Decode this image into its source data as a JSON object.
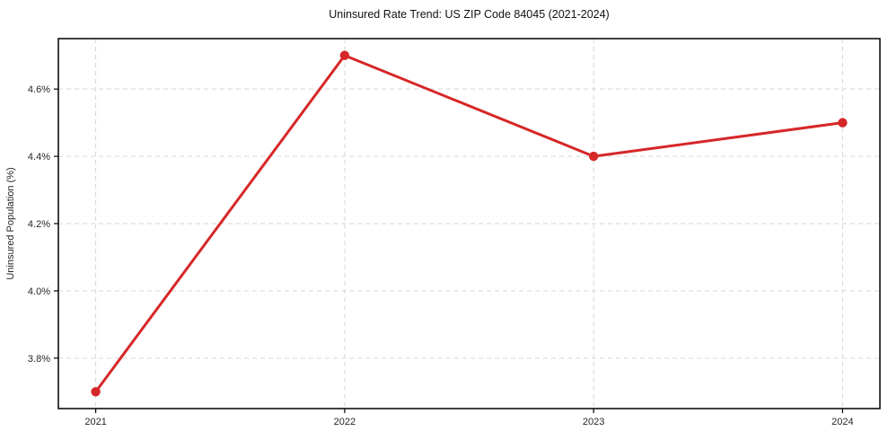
{
  "figure": {
    "background": "#ffffff"
  },
  "chart_data": {
    "type": "line",
    "title": "Uninsured Rate Trend: US ZIP Code 84045 (2021-2024)",
    "xlabel": "",
    "ylabel": "Uninsured Population (%)",
    "x": [
      2021,
      2022,
      2023,
      2024
    ],
    "values": [
      3.7,
      4.7,
      4.4,
      4.5
    ],
    "xlim": [
      2020.85,
      2024.15
    ],
    "ylim": [
      3.65,
      4.75
    ],
    "xticks": {
      "positions": [
        2021,
        2022,
        2023,
        2024
      ],
      "labels": [
        "2021",
        "2022",
        "2023",
        "2024"
      ]
    },
    "yticks": {
      "positions": [
        3.8,
        4.0,
        4.2,
        4.4,
        4.6
      ],
      "labels": [
        "3.8%",
        "4.0%",
        "4.2%",
        "4.4%",
        "4.6%"
      ]
    },
    "grid": true,
    "grid_style": "dashed",
    "legend": false,
    "marker": "circle",
    "colors": {
      "line": "#d62728",
      "marker": "#d62728",
      "grid": "#d6d6d6",
      "spine": "#000000",
      "text": "#262626",
      "title": "#111111"
    }
  }
}
